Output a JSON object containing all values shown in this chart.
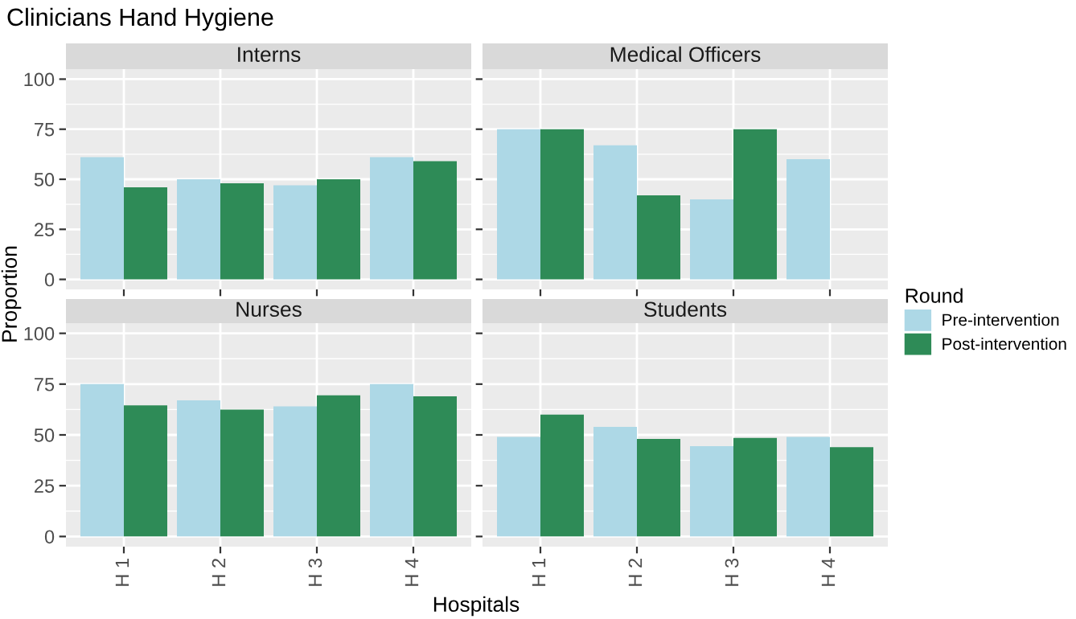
{
  "chart_data": [
    {
      "type": "bar",
      "title": "Clinicians Hand Hygiene",
      "subtitle": "Interns",
      "xlabel": "Hospitals",
      "ylabel": "Proportion",
      "legend_title": "Round",
      "legend": "right",
      "grid": true,
      "tick_labels": "y",
      "categories": [
        "H 1",
        "H 2",
        "H 3",
        "H 4"
      ],
      "ylim": [
        -5,
        105
      ],
      "yticks": [
        0,
        25,
        50,
        75,
        100
      ],
      "series": [
        {
          "name": "Pre-intervention",
          "color": "#add8e6",
          "values": [
            61,
            50,
            47,
            61
          ]
        },
        {
          "name": "Post-intervention",
          "color": "#2e8b57",
          "values": [
            46,
            48,
            50,
            59
          ]
        }
      ]
    },
    {
      "type": "bar",
      "subtitle": "Medical Officers",
      "grid": true,
      "tick_labels": false,
      "categories": [
        "H 1",
        "H 2",
        "H 3",
        "H 4"
      ],
      "ylim": [
        -5,
        105
      ],
      "yticks": [
        0,
        25,
        50,
        75,
        100
      ],
      "series": [
        {
          "name": "Pre-intervention",
          "color": "#add8e6",
          "values": [
            75,
            67,
            40,
            60
          ]
        },
        {
          "name": "Post-intervention",
          "color": "#2e8b57",
          "values": [
            75,
            42,
            75,
            null
          ]
        }
      ]
    },
    {
      "type": "bar",
      "subtitle": "Nurses",
      "grid": true,
      "categories": [
        "H 1",
        "H 2",
        "H 3",
        "H 4"
      ],
      "ylim": [
        -5,
        105
      ],
      "yticks": [
        0,
        25,
        50,
        75,
        100
      ],
      "series": [
        {
          "name": "Pre-intervention",
          "color": "#add8e6",
          "values": [
            75,
            67,
            64,
            75
          ]
        },
        {
          "name": "Post-intervention",
          "color": "#2e8b57",
          "values": [
            64.5,
            62.5,
            69.5,
            69
          ]
        }
      ]
    },
    {
      "type": "bar",
      "subtitle": "Students",
      "grid": true,
      "tick_labels": "x",
      "categories": [
        "H 1",
        "H 2",
        "H 3",
        "H 4"
      ],
      "ylim": [
        -5,
        105
      ],
      "yticks": [
        0,
        25,
        50,
        75,
        100
      ],
      "series": [
        {
          "name": "Pre-intervention",
          "color": "#add8e6",
          "values": [
            49,
            54,
            44.5,
            49
          ]
        },
        {
          "name": "Post-intervention",
          "color": "#2e8b57",
          "values": [
            60,
            48,
            48.5,
            44
          ]
        }
      ]
    }
  ]
}
